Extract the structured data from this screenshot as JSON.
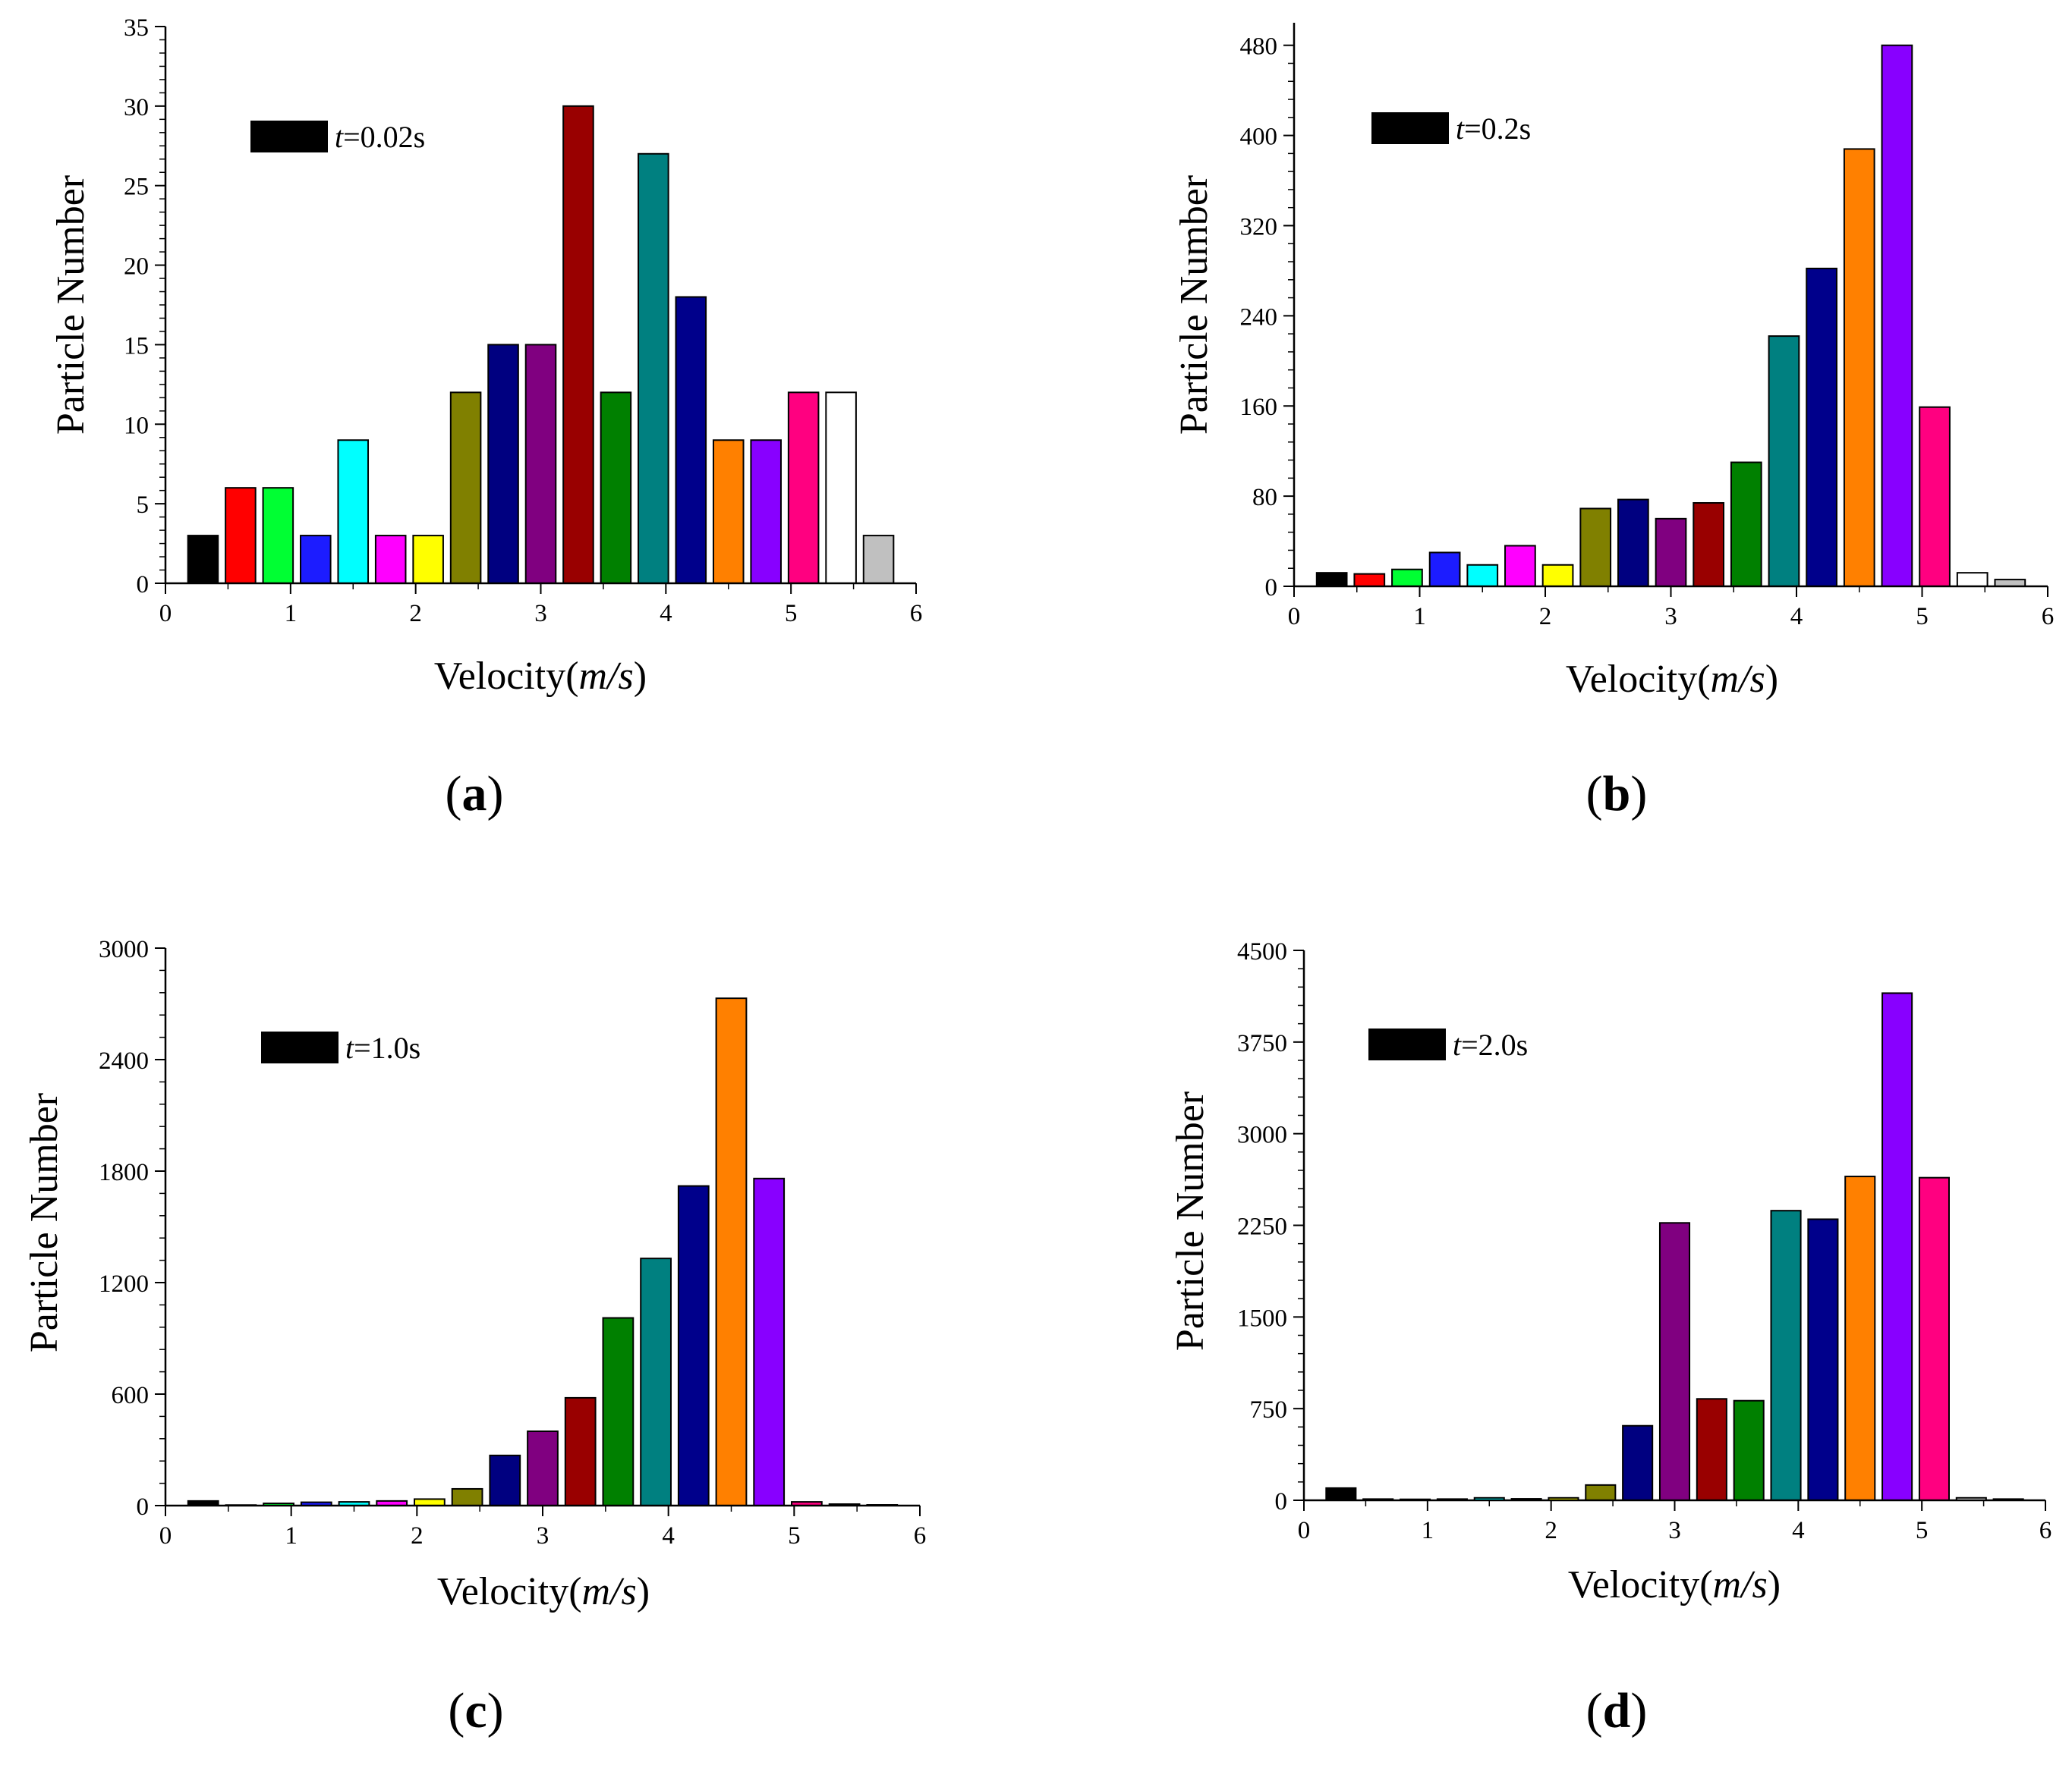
{
  "figure": {
    "colors": {
      "axis": "#000000",
      "bar_outline": "#000000",
      "palette": [
        "#000000",
        "#ff0000",
        "#00ff33",
        "#1c1cff",
        "#00ffff",
        "#ff00ff",
        "#ffff00",
        "#808000",
        "#000080",
        "#800080",
        "#990000",
        "#008000",
        "#008080",
        "#00008b",
        "#ff8000",
        "#8800ff",
        "#ff0080",
        "#ffffff",
        "#c0c0c0"
      ]
    }
  },
  "chart_data": [
    {
      "id": "a",
      "type": "bar",
      "panel_label": "a",
      "legend": {
        "prefix": "t",
        "suffix": "=0.02s",
        "color": "#000000",
        "position": "top-left"
      },
      "xlabel": {
        "main": "Velocity(",
        "italic": "m/s",
        "end": ")"
      },
      "ylabel": "Particle Number",
      "xlim": [
        0,
        6
      ],
      "ylim": [
        0,
        35
      ],
      "xticks": [
        "0",
        "1",
        "2",
        "3",
        "4",
        "5",
        "6"
      ],
      "yticks": [
        0,
        5,
        10,
        15,
        20,
        25,
        30,
        35
      ],
      "x": [
        0.3,
        0.6,
        0.9,
        1.2,
        1.5,
        1.8,
        2.1,
        2.4,
        2.7,
        3.0,
        3.3,
        3.6,
        3.9,
        4.2,
        4.5,
        4.8,
        5.1,
        5.4,
        5.7
      ],
      "values": [
        3,
        6,
        6,
        3,
        9,
        3,
        3,
        12,
        15,
        15,
        30,
        12,
        27,
        18,
        9,
        9,
        12,
        12,
        3
      ],
      "colors": [
        "#000000",
        "#ff0000",
        "#00ff33",
        "#1c1cff",
        "#00ffff",
        "#ff00ff",
        "#ffff00",
        "#808000",
        "#000080",
        "#800080",
        "#990000",
        "#008000",
        "#008080",
        "#00008b",
        "#ff8000",
        "#8800ff",
        "#ff0080",
        "#ffffff",
        "#c0c0c0"
      ]
    },
    {
      "id": "b",
      "type": "bar",
      "panel_label": "b",
      "legend": {
        "prefix": "t",
        "suffix": "=0.2s",
        "color": "#000000",
        "position": "top-left"
      },
      "xlabel": {
        "main": "Velocity(",
        "italic": "m/s",
        "end": ")"
      },
      "ylabel": "Particle Number",
      "xlim": [
        0,
        6
      ],
      "ylim": [
        0,
        500
      ],
      "xticks": [
        "0",
        "1",
        "2",
        "3",
        "4",
        "5",
        "6"
      ],
      "yticks": [
        0,
        80,
        160,
        240,
        320,
        400,
        480
      ],
      "x": [
        0.3,
        0.6,
        0.9,
        1.2,
        1.5,
        1.8,
        2.1,
        2.4,
        2.7,
        3.0,
        3.3,
        3.6,
        3.9,
        4.2,
        4.5,
        4.8,
        5.1,
        5.4,
        5.7
      ],
      "values": [
        12,
        11,
        15,
        30,
        19,
        36,
        19,
        69,
        77,
        60,
        74,
        110,
        222,
        282,
        388,
        480,
        159,
        12,
        6
      ],
      "colors": [
        "#000000",
        "#ff0000",
        "#00ff33",
        "#1c1cff",
        "#00ffff",
        "#ff00ff",
        "#ffff00",
        "#808000",
        "#000080",
        "#800080",
        "#990000",
        "#008000",
        "#008080",
        "#00008b",
        "#ff8000",
        "#8800ff",
        "#ff0080",
        "#ffffff",
        "#c0c0c0"
      ]
    },
    {
      "id": "c",
      "type": "bar",
      "panel_label": "c",
      "legend": {
        "prefix": "t",
        "suffix": "=1.0s",
        "color": "#000000",
        "position": "top-left"
      },
      "xlabel": {
        "main": "Velocity(",
        "italic": "m/s",
        "end": ")"
      },
      "ylabel": "Particle Number",
      "xlim": [
        0,
        6
      ],
      "ylim": [
        0,
        3000
      ],
      "xticks": [
        "0",
        "1",
        "2",
        "3",
        "4",
        "5",
        "6"
      ],
      "yticks": [
        0,
        600,
        1200,
        1800,
        2400,
        3000
      ],
      "x": [
        0.3,
        0.6,
        0.9,
        1.2,
        1.5,
        1.8,
        2.1,
        2.4,
        2.7,
        3.0,
        3.3,
        3.6,
        3.9,
        4.2,
        4.5,
        4.8,
        5.1,
        5.4,
        5.7
      ],
      "values": [
        25,
        3,
        12,
        18,
        20,
        25,
        35,
        90,
        270,
        400,
        580,
        1010,
        1330,
        1720,
        2730,
        1760,
        20,
        8,
        4
      ],
      "colors": [
        "#000000",
        "#ff0000",
        "#00ff33",
        "#1c1cff",
        "#00ffff",
        "#ff00ff",
        "#ffff00",
        "#808000",
        "#000080",
        "#800080",
        "#990000",
        "#008000",
        "#008080",
        "#00008b",
        "#ff8000",
        "#8800ff",
        "#ff0080",
        "#ffffff",
        "#c0c0c0"
      ]
    },
    {
      "id": "d",
      "type": "bar",
      "panel_label": "d",
      "legend": {
        "prefix": "t",
        "suffix": "=2.0s",
        "color": "#000000",
        "position": "top-left"
      },
      "xlabel": {
        "main": "Velocity(",
        "italic": "m/s",
        "end": ")"
      },
      "ylabel": "Particle Number",
      "xlim": [
        0,
        6
      ],
      "ylim": [
        0,
        4500
      ],
      "xticks": [
        "0",
        "1",
        "2",
        "3",
        "4",
        "5",
        "6"
      ],
      "yticks": [
        0,
        750,
        1500,
        2250,
        3000,
        3750,
        4500
      ],
      "x": [
        0.3,
        0.6,
        0.9,
        1.2,
        1.5,
        1.8,
        2.1,
        2.4,
        2.7,
        3.0,
        3.3,
        3.6,
        3.9,
        4.2,
        4.5,
        4.8,
        5.1,
        5.4,
        5.7
      ],
      "values": [
        100,
        10,
        8,
        10,
        20,
        12,
        20,
        125,
        610,
        2270,
        830,
        815,
        2370,
        2300,
        2650,
        4150,
        2640,
        20,
        10
      ],
      "colors": [
        "#000000",
        "#ff0000",
        "#00ff33",
        "#1c1cff",
        "#00ffff",
        "#ff00ff",
        "#ffff00",
        "#808000",
        "#000080",
        "#800080",
        "#990000",
        "#008000",
        "#008080",
        "#00008b",
        "#ff8000",
        "#8800ff",
        "#ff0080",
        "#ffffff",
        "#c0c0c0"
      ]
    }
  ]
}
